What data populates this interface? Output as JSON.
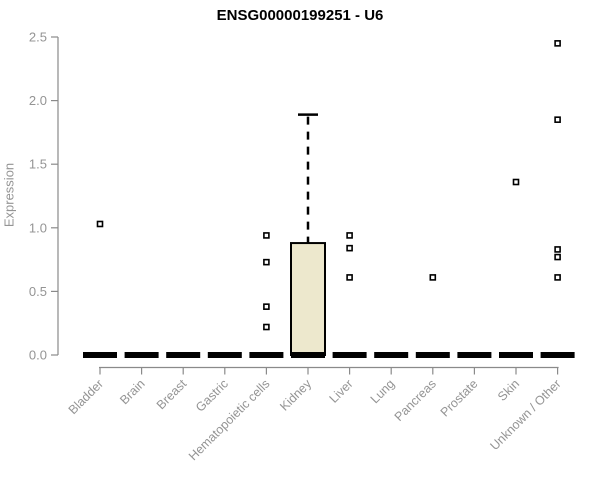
{
  "chart_data": {
    "type": "boxplot",
    "title": "ENSG00000199251 - U6",
    "ylabel": "Expression",
    "xlabel": "",
    "ylim": [
      0,
      2.5
    ],
    "yticks": [
      "0.0",
      "0.5",
      "1.0",
      "1.5",
      "2.0",
      "2.5"
    ],
    "grid": false,
    "legend": "none",
    "categories": [
      "Bladder",
      "Brain",
      "Breast",
      "Gastric",
      "Hematopoietic cells",
      "Kidney",
      "Liver",
      "Lung",
      "Pancreas",
      "Prostate",
      "Skin",
      "Unknown / Other"
    ],
    "boxes": [
      {
        "category": "Bladder",
        "median": 0,
        "q1": 0,
        "q3": 0,
        "whisker_low": 0,
        "whisker_high": 0,
        "outliers": [
          1.03
        ]
      },
      {
        "category": "Brain",
        "median": 0,
        "q1": 0,
        "q3": 0,
        "whisker_low": 0,
        "whisker_high": 0,
        "outliers": []
      },
      {
        "category": "Breast",
        "median": 0,
        "q1": 0,
        "q3": 0,
        "whisker_low": 0,
        "whisker_high": 0,
        "outliers": []
      },
      {
        "category": "Gastric",
        "median": 0,
        "q1": 0,
        "q3": 0,
        "whisker_low": 0,
        "whisker_high": 0,
        "outliers": []
      },
      {
        "category": "Hematopoietic cells",
        "median": 0,
        "q1": 0,
        "q3": 0,
        "whisker_low": 0,
        "whisker_high": 0,
        "outliers": [
          0.94,
          0.73,
          0.38,
          0.22
        ]
      },
      {
        "category": "Kidney",
        "median": 0,
        "q1": 0,
        "q3": 0.88,
        "whisker_low": 0,
        "whisker_high": 1.89,
        "outliers": []
      },
      {
        "category": "Liver",
        "median": 0,
        "q1": 0,
        "q3": 0,
        "whisker_low": 0,
        "whisker_high": 0,
        "outliers": [
          0.94,
          0.84,
          0.61
        ]
      },
      {
        "category": "Lung",
        "median": 0,
        "q1": 0,
        "q3": 0,
        "whisker_low": 0,
        "whisker_high": 0,
        "outliers": []
      },
      {
        "category": "Pancreas",
        "median": 0,
        "q1": 0,
        "q3": 0,
        "whisker_low": 0,
        "whisker_high": 0,
        "outliers": [
          0.61
        ]
      },
      {
        "category": "Prostate",
        "median": 0,
        "q1": 0,
        "q3": 0,
        "whisker_low": 0,
        "whisker_high": 0,
        "outliers": []
      },
      {
        "category": "Skin",
        "median": 0,
        "q1": 0,
        "q3": 0,
        "whisker_low": 0,
        "whisker_high": 0,
        "outliers": [
          1.36
        ]
      },
      {
        "category": "Unknown / Other",
        "median": 0,
        "q1": 0,
        "q3": 0,
        "whisker_low": 0,
        "whisker_high": 0,
        "outliers": [
          2.45,
          1.85,
          0.83,
          0.77,
          0.61
        ]
      }
    ],
    "colors": {
      "box_fill": "#EDE8CD",
      "box_stroke": "#000000",
      "median": "#000000",
      "whisker": "#000000",
      "axis": "#8a8a8a",
      "tick_text": "#949494",
      "title": "#000000",
      "outlier_fill": "#ffffff",
      "outlier_stroke": "#000000"
    }
  }
}
